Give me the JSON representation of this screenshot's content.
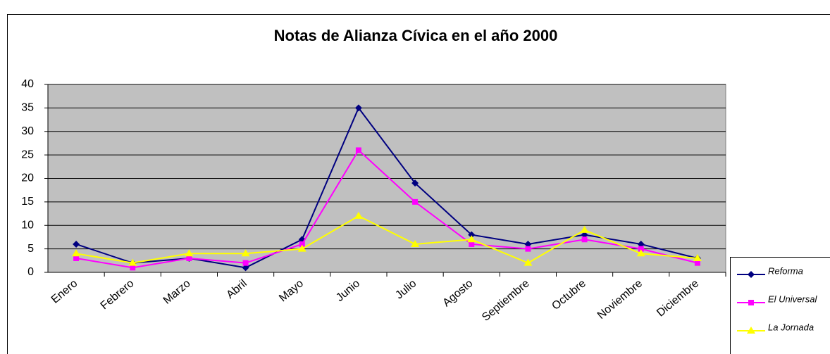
{
  "chart_data": {
    "type": "line",
    "title": "Notas de Alianza Cívica en el año 2000",
    "categories": [
      "Enero",
      "Febrero",
      "Marzo",
      "Abril",
      "Mayo",
      "Junio",
      "Julio",
      "Agosto",
      "Septiembre",
      "Octubre",
      "Noviembre",
      "Diciembre"
    ],
    "series": [
      {
        "name": "Reforma",
        "color": "#000080",
        "marker": "diamond",
        "values": [
          6,
          2,
          3,
          1,
          7,
          35,
          19,
          8,
          6,
          8,
          6,
          3
        ]
      },
      {
        "name": "El Universal",
        "color": "#ff00ff",
        "marker": "square",
        "values": [
          3,
          1,
          3,
          2,
          6,
          26,
          15,
          6,
          5,
          7,
          5,
          2
        ]
      },
      {
        "name": "La Jornada",
        "color": "#ffff00",
        "marker": "triangle",
        "values": [
          4,
          2,
          4,
          4,
          5,
          12,
          6,
          7,
          2,
          9,
          4,
          3
        ]
      }
    ],
    "ylim": [
      0,
      40
    ],
    "yticks": [
      0,
      5,
      10,
      15,
      20,
      25,
      30,
      35,
      40
    ],
    "grid": true,
    "legend": "lower right",
    "plot_background": "#c0c0c0"
  }
}
